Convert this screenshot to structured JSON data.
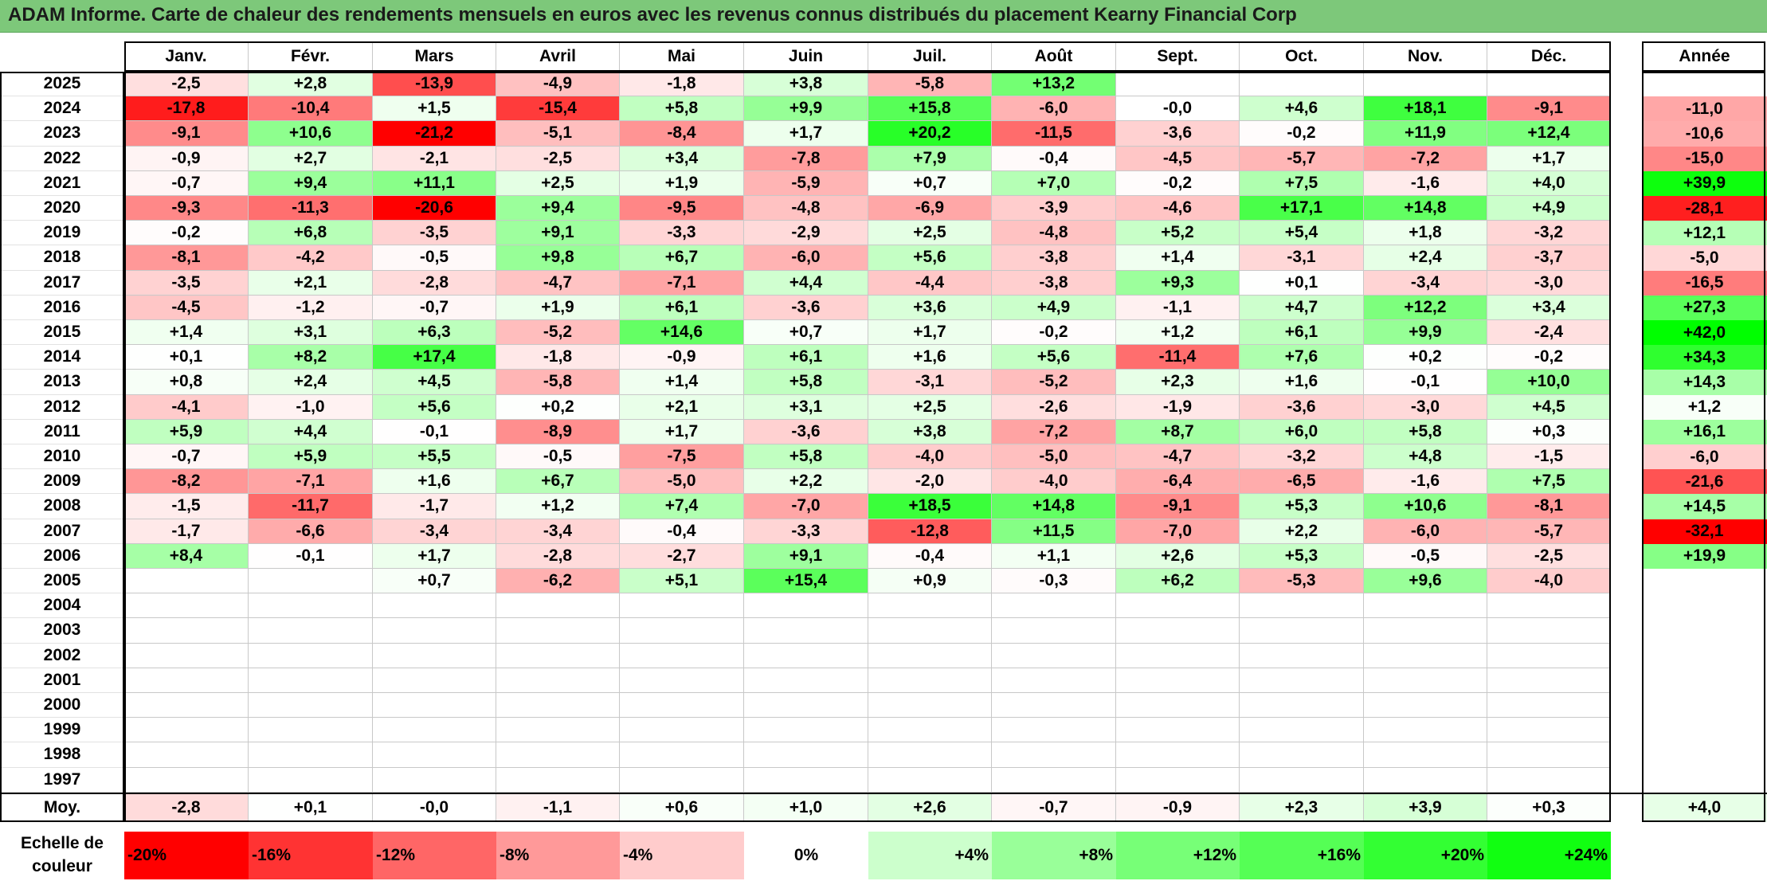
{
  "title": "ADAM Informe. Carte de chaleur des rendements mensuels en euros avec les revenus connus distribués du placement Kearny Financial Corp",
  "chart_data": {
    "type": "heatmap",
    "title": "ADAM Informe. Carte de chaleur des rendements mensuels en euros avec les revenus connus distribués du placement Kearny Financial Corp",
    "columns": [
      "Janv.",
      "Févr.",
      "Mars",
      "Avril",
      "Mai",
      "Juin",
      "Juil.",
      "Août",
      "Sept.",
      "Oct.",
      "Nov.",
      "Déc."
    ],
    "year_column_label": "Année",
    "rows": [
      {
        "year": "2025",
        "values": [
          "-2,5",
          "+2,8",
          "-13,9",
          "-4,9",
          "-1,8",
          "+3,8",
          "-5,8",
          "+13,2",
          "",
          "",
          "",
          ""
        ],
        "annual": ""
      },
      {
        "year": "2024",
        "values": [
          "-17,8",
          "-10,4",
          "+1,5",
          "-15,4",
          "+5,8",
          "+9,9",
          "+15,8",
          "-6,0",
          "-0,0",
          "+4,6",
          "+18,1",
          "-9,1"
        ],
        "annual": "-11,0"
      },
      {
        "year": "2023",
        "values": [
          "-9,1",
          "+10,6",
          "-21,2",
          "-5,1",
          "-8,4",
          "+1,7",
          "+20,2",
          "-11,5",
          "-3,6",
          "-0,2",
          "+11,9",
          "+12,4"
        ],
        "annual": "-10,6"
      },
      {
        "year": "2022",
        "values": [
          "-0,9",
          "+2,7",
          "-2,1",
          "-2,5",
          "+3,4",
          "-7,8",
          "+7,9",
          "-0,4",
          "-4,5",
          "-5,7",
          "-7,2",
          "+1,7"
        ],
        "annual": "-15,0"
      },
      {
        "year": "2021",
        "values": [
          "-0,7",
          "+9,4",
          "+11,1",
          "+2,5",
          "+1,9",
          "-5,9",
          "+0,7",
          "+7,0",
          "-0,2",
          "+7,5",
          "-1,6",
          "+4,0"
        ],
        "annual": "+39,9"
      },
      {
        "year": "2020",
        "values": [
          "-9,3",
          "-11,3",
          "-20,6",
          "+9,4",
          "-9,5",
          "-4,8",
          "-6,9",
          "-3,9",
          "-4,6",
          "+17,1",
          "+14,8",
          "+4,9"
        ],
        "annual": "-28,1"
      },
      {
        "year": "2019",
        "values": [
          "-0,2",
          "+6,8",
          "-3,5",
          "+9,1",
          "-3,3",
          "-2,9",
          "+2,5",
          "-4,8",
          "+5,2",
          "+5,4",
          "+1,8",
          "-3,2"
        ],
        "annual": "+12,1"
      },
      {
        "year": "2018",
        "values": [
          "-8,1",
          "-4,2",
          "-0,5",
          "+9,8",
          "+6,7",
          "-6,0",
          "+5,6",
          "-3,8",
          "+1,4",
          "-3,1",
          "+2,4",
          "-3,7"
        ],
        "annual": "-5,0"
      },
      {
        "year": "2017",
        "values": [
          "-3,5",
          "+2,1",
          "-2,8",
          "-4,7",
          "-7,1",
          "+4,4",
          "-4,4",
          "-3,8",
          "+9,3",
          "+0,1",
          "-3,4",
          "-3,0"
        ],
        "annual": "-16,5"
      },
      {
        "year": "2016",
        "values": [
          "-4,5",
          "-1,2",
          "-0,7",
          "+1,9",
          "+6,1",
          "-3,6",
          "+3,6",
          "+4,9",
          "-1,1",
          "+4,7",
          "+12,2",
          "+3,4"
        ],
        "annual": "+27,3"
      },
      {
        "year": "2015",
        "values": [
          "+1,4",
          "+3,1",
          "+6,3",
          "-5,2",
          "+14,6",
          "+0,7",
          "+1,7",
          "-0,2",
          "+1,2",
          "+6,1",
          "+9,9",
          "-2,4"
        ],
        "annual": "+42,0"
      },
      {
        "year": "2014",
        "values": [
          "+0,1",
          "+8,2",
          "+17,4",
          "-1,8",
          "-0,9",
          "+6,1",
          "+1,6",
          "+5,6",
          "-11,4",
          "+7,6",
          "+0,2",
          "-0,2"
        ],
        "annual": "+34,3"
      },
      {
        "year": "2013",
        "values": [
          "+0,8",
          "+2,4",
          "+4,5",
          "-5,8",
          "+1,4",
          "+5,8",
          "-3,1",
          "-5,2",
          "+2,3",
          "+1,6",
          "-0,1",
          "+10,0"
        ],
        "annual": "+14,3"
      },
      {
        "year": "2012",
        "values": [
          "-4,1",
          "-1,0",
          "+5,6",
          "+0,2",
          "+2,1",
          "+3,1",
          "+2,5",
          "-2,6",
          "-1,9",
          "-3,6",
          "-3,0",
          "+4,5"
        ],
        "annual": "+1,2"
      },
      {
        "year": "2011",
        "values": [
          "+5,9",
          "+4,4",
          "-0,1",
          "-8,9",
          "+1,7",
          "-3,6",
          "+3,8",
          "-7,2",
          "+8,7",
          "+6,0",
          "+5,8",
          "+0,3"
        ],
        "annual": "+16,1"
      },
      {
        "year": "2010",
        "values": [
          "-0,7",
          "+5,9",
          "+5,5",
          "-0,5",
          "-7,5",
          "+5,8",
          "-4,0",
          "-5,0",
          "-4,7",
          "-3,2",
          "+4,8",
          "-1,5"
        ],
        "annual": "-6,0"
      },
      {
        "year": "2009",
        "values": [
          "-8,2",
          "-7,1",
          "+1,6",
          "+6,7",
          "-5,0",
          "+2,2",
          "-2,0",
          "-4,0",
          "-6,4",
          "-6,5",
          "-1,6",
          "+7,5"
        ],
        "annual": "-21,6"
      },
      {
        "year": "2008",
        "values": [
          "-1,5",
          "-11,7",
          "-1,7",
          "+1,2",
          "+7,4",
          "-7,0",
          "+18,5",
          "+14,8",
          "-9,1",
          "+5,3",
          "+10,6",
          "-8,1"
        ],
        "annual": "+14,5"
      },
      {
        "year": "2007",
        "values": [
          "-1,7",
          "-6,6",
          "-3,4",
          "-3,4",
          "-0,4",
          "-3,3",
          "-12,8",
          "+11,5",
          "-7,0",
          "+2,2",
          "-6,0",
          "-5,7"
        ],
        "annual": "-32,1"
      },
      {
        "year": "2006",
        "values": [
          "+8,4",
          "-0,1",
          "+1,7",
          "-2,8",
          "-2,7",
          "+9,1",
          "-0,4",
          "+1,1",
          "+2,6",
          "+5,3",
          "-0,5",
          "-2,5"
        ],
        "annual": "+19,9"
      },
      {
        "year": "2005",
        "values": [
          "",
          "",
          "+0,7",
          "-6,2",
          "+5,1",
          "+15,4",
          "+0,9",
          "-0,3",
          "+6,2",
          "-5,3",
          "+9,6",
          "-4,0"
        ],
        "annual": ""
      },
      {
        "year": "2004",
        "values": [
          "",
          "",
          "",
          "",
          "",
          "",
          "",
          "",
          "",
          "",
          "",
          ""
        ],
        "annual": ""
      },
      {
        "year": "2003",
        "values": [
          "",
          "",
          "",
          "",
          "",
          "",
          "",
          "",
          "",
          "",
          "",
          ""
        ],
        "annual": ""
      },
      {
        "year": "2002",
        "values": [
          "",
          "",
          "",
          "",
          "",
          "",
          "",
          "",
          "",
          "",
          "",
          ""
        ],
        "annual": ""
      },
      {
        "year": "2001",
        "values": [
          "",
          "",
          "",
          "",
          "",
          "",
          "",
          "",
          "",
          "",
          "",
          ""
        ],
        "annual": ""
      },
      {
        "year": "2000",
        "values": [
          "",
          "",
          "",
          "",
          "",
          "",
          "",
          "",
          "",
          "",
          "",
          ""
        ],
        "annual": ""
      },
      {
        "year": "1999",
        "values": [
          "",
          "",
          "",
          "",
          "",
          "",
          "",
          "",
          "",
          "",
          "",
          ""
        ],
        "annual": ""
      },
      {
        "year": "1998",
        "values": [
          "",
          "",
          "",
          "",
          "",
          "",
          "",
          "",
          "",
          "",
          "",
          ""
        ],
        "annual": ""
      },
      {
        "year": "1997",
        "values": [
          "",
          "",
          "",
          "",
          "",
          "",
          "",
          "",
          "",
          "",
          "",
          ""
        ],
        "annual": ""
      }
    ],
    "average": {
      "label": "Moy.",
      "values": [
        "-2,8",
        "+0,1",
        "-0,0",
        "-1,1",
        "+0,6",
        "+1,0",
        "+2,6",
        "-0,7",
        "-0,9",
        "+2,3",
        "+3,9",
        "+0,3"
      ],
      "annual": "+4,0"
    },
    "color_scale": {
      "label": "Echelle de couleur",
      "steps": [
        "-20%",
        "-16%",
        "-12%",
        "-8%",
        "-4%",
        "0%",
        "+4%",
        "+8%",
        "+12%",
        "+16%",
        "+20%",
        "+24%"
      ],
      "colors": [
        "#ff0000",
        "#ff3333",
        "#ff6666",
        "#ff9999",
        "#ffcccc",
        "#ffffff",
        "#ccffcc",
        "#99ff99",
        "#77ff77",
        "#55ff55",
        "#33ff33",
        "#11ff11"
      ]
    },
    "colors": {
      "negative_max": "#ff0000",
      "neutral": "#ffffff",
      "positive_max": "#00ff00",
      "title_bar": "#7dc87a"
    }
  }
}
